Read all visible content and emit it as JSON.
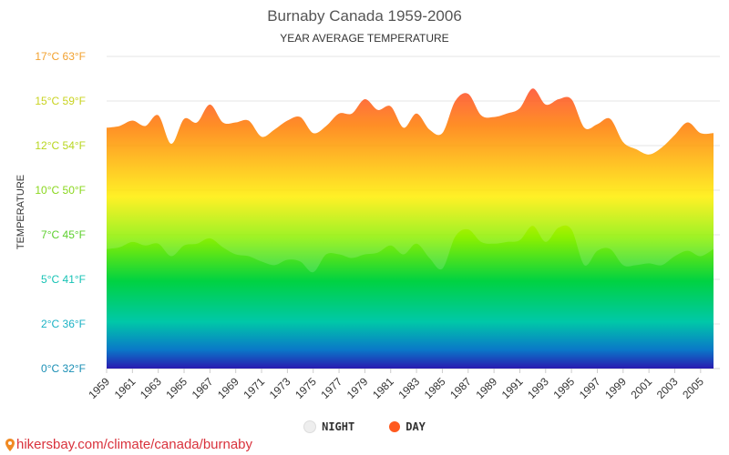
{
  "chart_data": {
    "type": "area",
    "title": "Burnaby Canada 1959-2006",
    "subtitle": "YEAR AVERAGE TEMPERATURE",
    "ylabel": "TEMPERATURE",
    "ylim": [
      0,
      17.5
    ],
    "y_ticks": [
      {
        "value": 0,
        "label": "0°C 32°F",
        "color": "#1a8fb5"
      },
      {
        "value": 2.5,
        "label": "2°C 36°F",
        "color": "#1ab2c4"
      },
      {
        "value": 5,
        "label": "5°C 41°F",
        "color": "#17c3b5"
      },
      {
        "value": 7.5,
        "label": "7°C 45°F",
        "color": "#5ccf2d"
      },
      {
        "value": 10,
        "label": "10°C 50°F",
        "color": "#8ad71d"
      },
      {
        "value": 12.5,
        "label": "12°C 54°F",
        "color": "#b8d61f"
      },
      {
        "value": 15,
        "label": "15°C 59°F",
        "color": "#c9d320"
      },
      {
        "value": 17.5,
        "label": "17°C 63°F",
        "color": "#f2a12e"
      }
    ],
    "x": [
      1959,
      1960,
      1961,
      1962,
      1963,
      1964,
      1965,
      1966,
      1967,
      1968,
      1969,
      1970,
      1971,
      1972,
      1973,
      1974,
      1975,
      1976,
      1977,
      1978,
      1979,
      1980,
      1981,
      1982,
      1983,
      1984,
      1985,
      1986,
      1987,
      1988,
      1989,
      1990,
      1991,
      1992,
      1993,
      1994,
      1995,
      1996,
      1997,
      1998,
      1999,
      2000,
      2001,
      2002,
      2003,
      2004,
      2005,
      2006
    ],
    "x_tick_labels": [
      "1959",
      "1961",
      "1963",
      "1965",
      "1967",
      "1969",
      "1971",
      "1973",
      "1975",
      "1977",
      "1979",
      "1981",
      "1983",
      "1985",
      "1987",
      "1989",
      "1991",
      "1993",
      "1995",
      "1997",
      "1999",
      "2001",
      "2003",
      "2005"
    ],
    "series": [
      {
        "name": "NIGHT",
        "values": [
          6.7,
          6.8,
          7.1,
          6.9,
          7.0,
          6.3,
          6.9,
          7.0,
          7.3,
          6.8,
          6.4,
          6.3,
          6.0,
          5.8,
          6.1,
          6.0,
          5.4,
          6.4,
          6.4,
          6.2,
          6.4,
          6.5,
          6.9,
          6.4,
          7.0,
          6.2,
          5.6,
          7.4,
          7.8,
          7.1,
          7.0,
          7.1,
          7.2,
          8.0,
          7.1,
          7.9,
          7.8,
          5.8,
          6.6,
          6.7,
          5.8,
          5.8,
          5.9,
          5.8,
          6.3,
          6.6,
          6.3,
          6.7
        ]
      },
      {
        "name": "DAY",
        "values": [
          13.5,
          13.6,
          13.9,
          13.6,
          14.2,
          12.6,
          14.0,
          13.8,
          14.8,
          13.8,
          13.8,
          13.9,
          13.0,
          13.4,
          13.9,
          14.1,
          13.2,
          13.6,
          14.3,
          14.3,
          15.1,
          14.5,
          14.7,
          13.5,
          14.3,
          13.4,
          13.2,
          15.0,
          15.4,
          14.2,
          14.1,
          14.3,
          14.6,
          15.7,
          14.8,
          15.1,
          15.1,
          13.5,
          13.7,
          14.0,
          12.7,
          12.3,
          12.0,
          12.4,
          13.1,
          13.8,
          13.2,
          13.2
        ]
      }
    ],
    "grid": true,
    "legend_position": "bottom"
  },
  "legend": {
    "night_label": "NIGHT",
    "day_label": "DAY",
    "night_color": "#eeeeee",
    "day_color": "#ff5a1f"
  },
  "source": {
    "text": "hikersbay.com/climate/canada/burnaby",
    "color": "#d9323c"
  },
  "colors": {
    "gradient": [
      "#ff1e46",
      "#ff7a00",
      "#ffee00",
      "#8cf000",
      "#00d242",
      "#00c8a8",
      "#0a78c8",
      "#2a1ab0"
    ],
    "grid": "#e6e6e6",
    "axis": "#cccccc",
    "x_tick_label": "#333333"
  }
}
